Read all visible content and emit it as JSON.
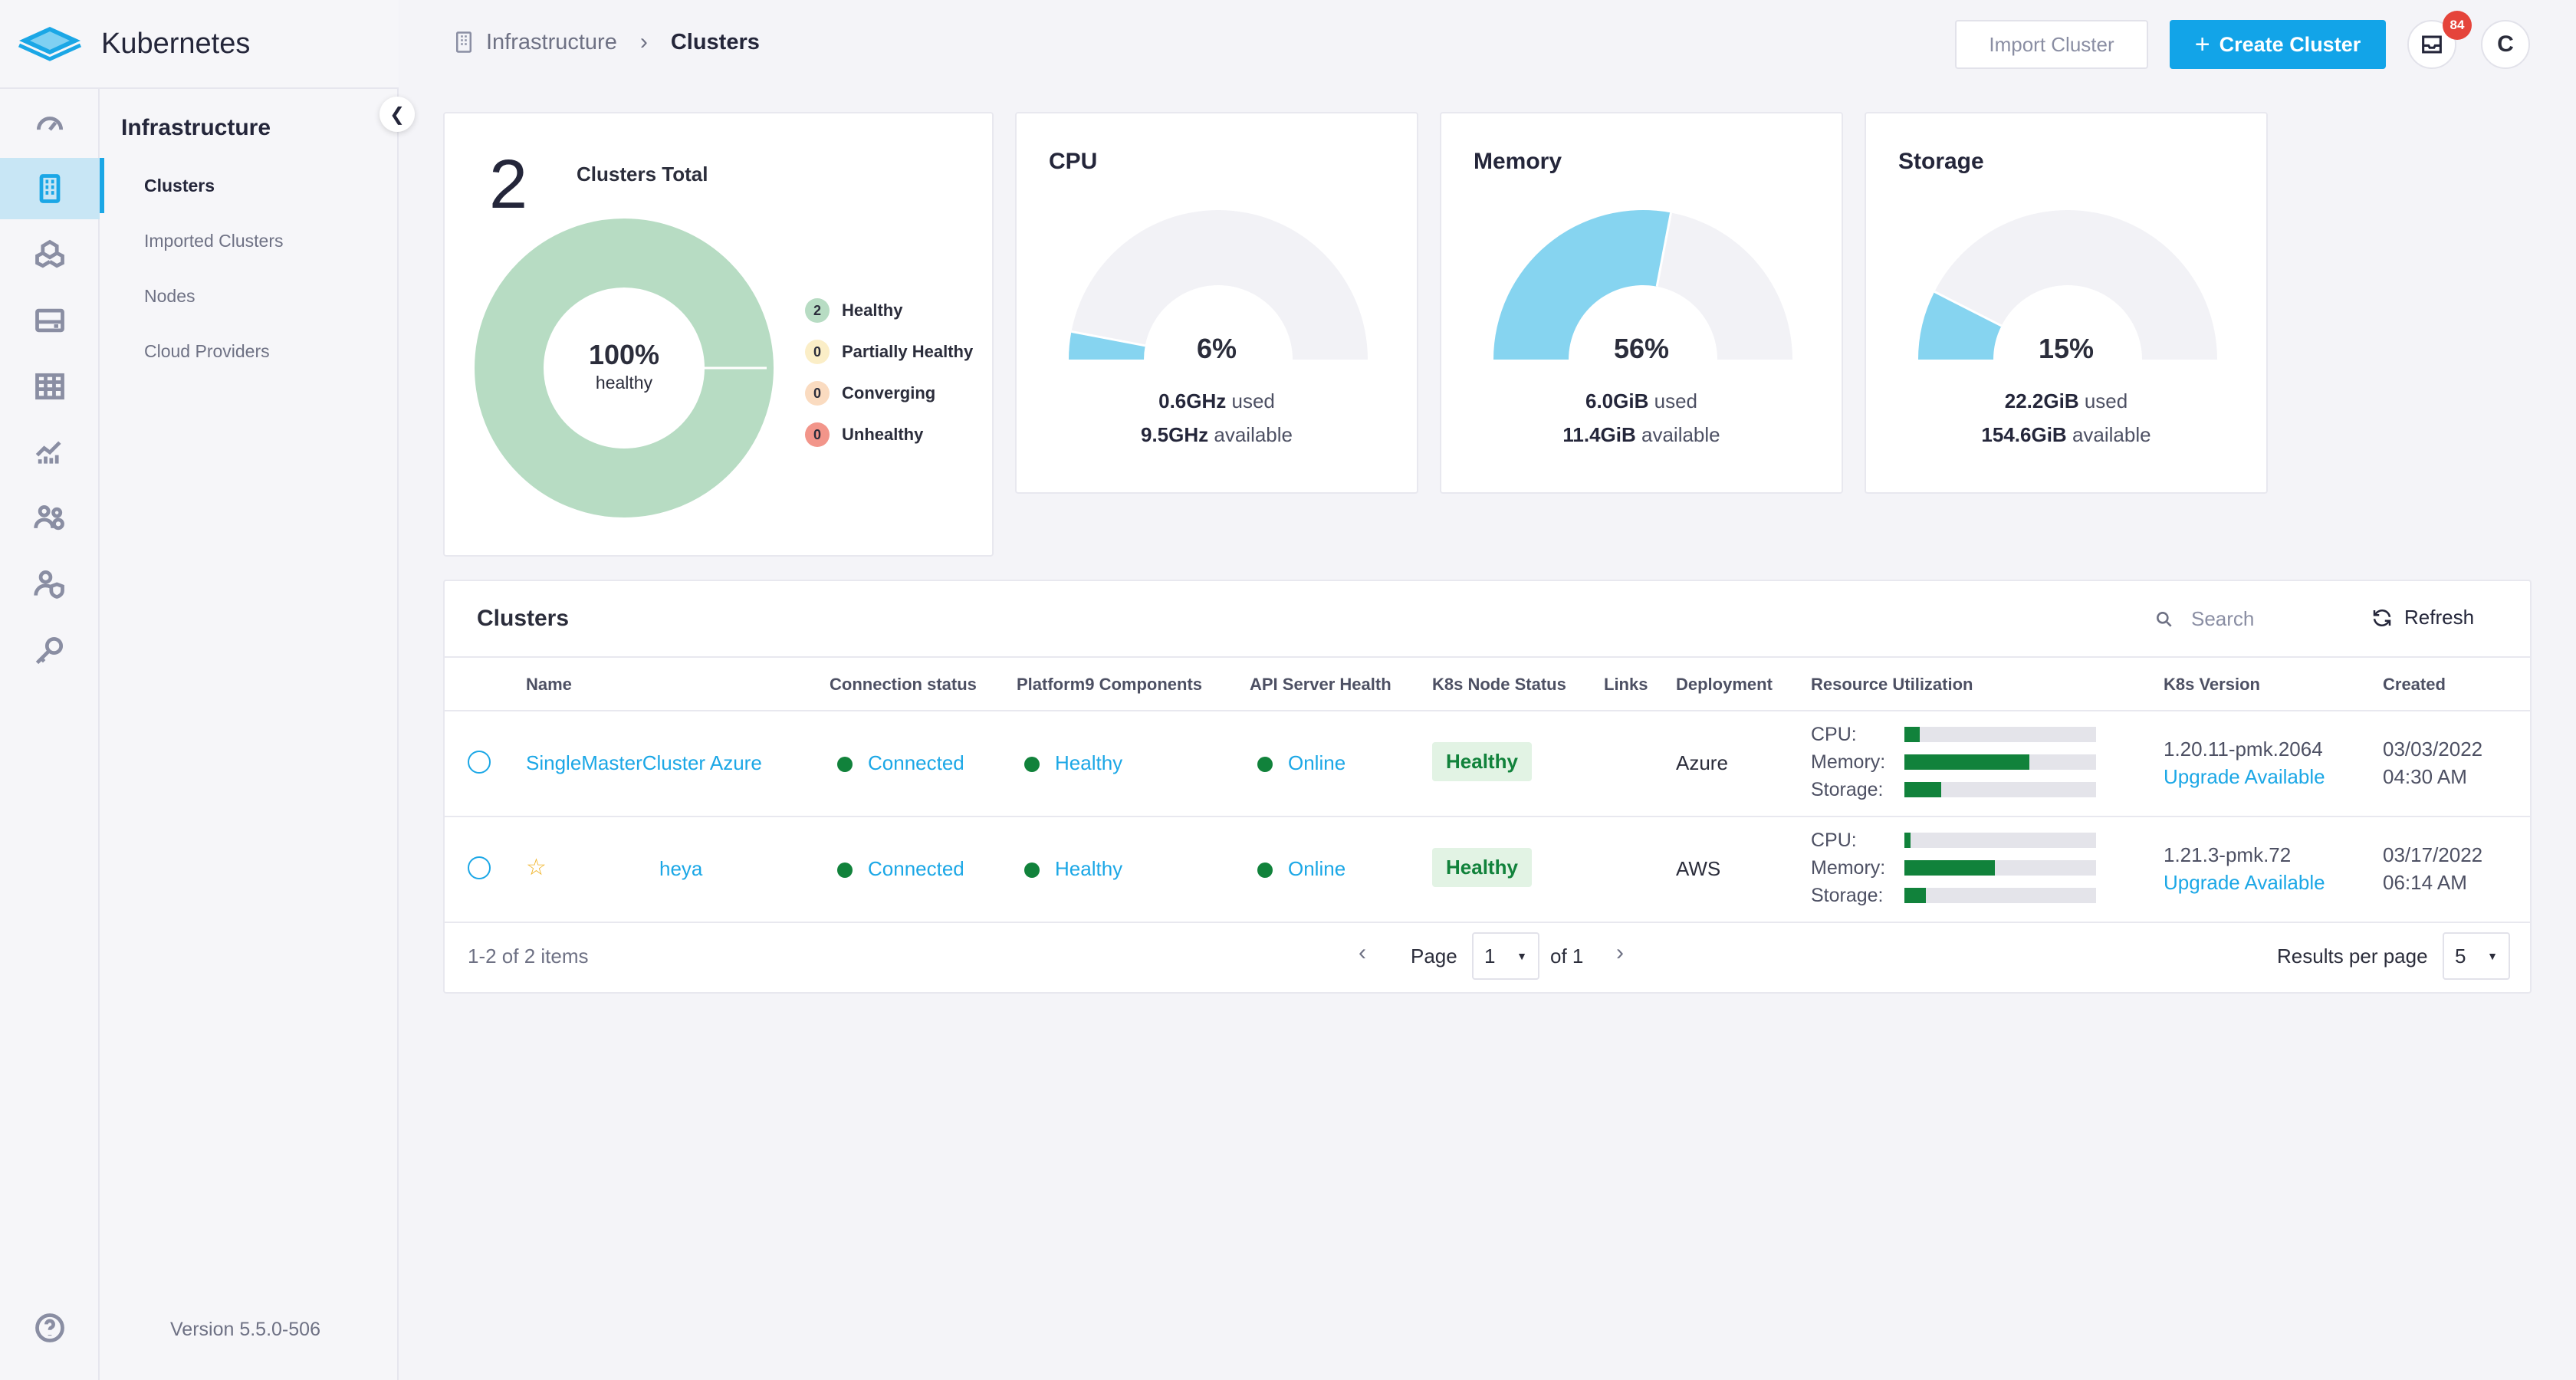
{
  "app": {
    "title": "Kubernetes",
    "version": "Version 5.5.0-506"
  },
  "subnav": {
    "header": "Infrastructure",
    "items": [
      {
        "label": "Clusters",
        "active": true
      },
      {
        "label": "Imported Clusters"
      },
      {
        "label": "Nodes"
      },
      {
        "label": "Cloud Providers"
      }
    ]
  },
  "breadcrumb": {
    "parent": "Infrastructure",
    "current": "Clusters"
  },
  "toolbar": {
    "import_label": "Import Cluster",
    "create_label": "Create Cluster",
    "notifications": "84",
    "avatar_initial": "C"
  },
  "summary": {
    "total": "2",
    "total_label": "Clusters Total",
    "pct": "100%",
    "pct_label": "healthy",
    "legend": [
      {
        "count": "2",
        "label": "Healthy",
        "color": "#b7dcc3"
      },
      {
        "count": "0",
        "label": "Partially Healthy",
        "color": "#fbeec7"
      },
      {
        "count": "0",
        "label": "Converging",
        "color": "#fadbc0"
      },
      {
        "count": "0",
        "label": "Unhealthy",
        "color": "#f2958a"
      }
    ]
  },
  "gauges": [
    {
      "title": "CPU",
      "pct": "6%",
      "value": 0.06,
      "used": "0.6GHz",
      "available": "9.5GHz"
    },
    {
      "title": "Memory",
      "pct": "56%",
      "value": 0.56,
      "used": "6.0GiB",
      "available": "11.4GiB"
    },
    {
      "title": "Storage",
      "pct": "15%",
      "value": 0.15,
      "used": "22.2GiB",
      "available": "154.6GiB"
    }
  ],
  "gauge_words": {
    "used": "used",
    "available": "available"
  },
  "table": {
    "title": "Clusters",
    "search_placeholder": "Search",
    "refresh_label": "Refresh",
    "columns": [
      "Name",
      "Connection status",
      "Platform9 Components",
      "API Server Health",
      "K8s Node Status",
      "Links",
      "Deployment",
      "Resource Utilization",
      "K8s Version",
      "Created"
    ],
    "resource_labels": [
      "CPU:",
      "Memory:",
      "Storage:"
    ],
    "rows": [
      {
        "name": "SingleMasterCluster Azure",
        "starred": false,
        "connection": "Connected",
        "components": "Healthy",
        "api": "Online",
        "node_status": "Healthy",
        "deployment": "Azure",
        "cpu": 0.08,
        "memory": 0.65,
        "storage": 0.19,
        "version": "1.20.11-pmk.2064",
        "upgrade": "Upgrade Available",
        "created_date": "03/03/2022",
        "created_time": "04:30 AM"
      },
      {
        "name": "heya",
        "starred": true,
        "connection": "Connected",
        "components": "Healthy",
        "api": "Online",
        "node_status": "Healthy",
        "deployment": "AWS",
        "cpu": 0.03,
        "memory": 0.47,
        "storage": 0.11,
        "version": "1.21.3-pmk.72",
        "upgrade": "Upgrade Available",
        "created_date": "03/17/2022",
        "created_time": "06:14 AM"
      }
    ],
    "footer": {
      "range": "1-2 of 2 items",
      "page_label": "Page",
      "page": "1",
      "of": "of 1",
      "per_page_label": "Results per page",
      "per_page": "5"
    }
  },
  "colors": {
    "accent": "#12a4e8",
    "healthy": "#11823b",
    "gauge": "#86d4f0",
    "donut": "#b7dcc3"
  }
}
